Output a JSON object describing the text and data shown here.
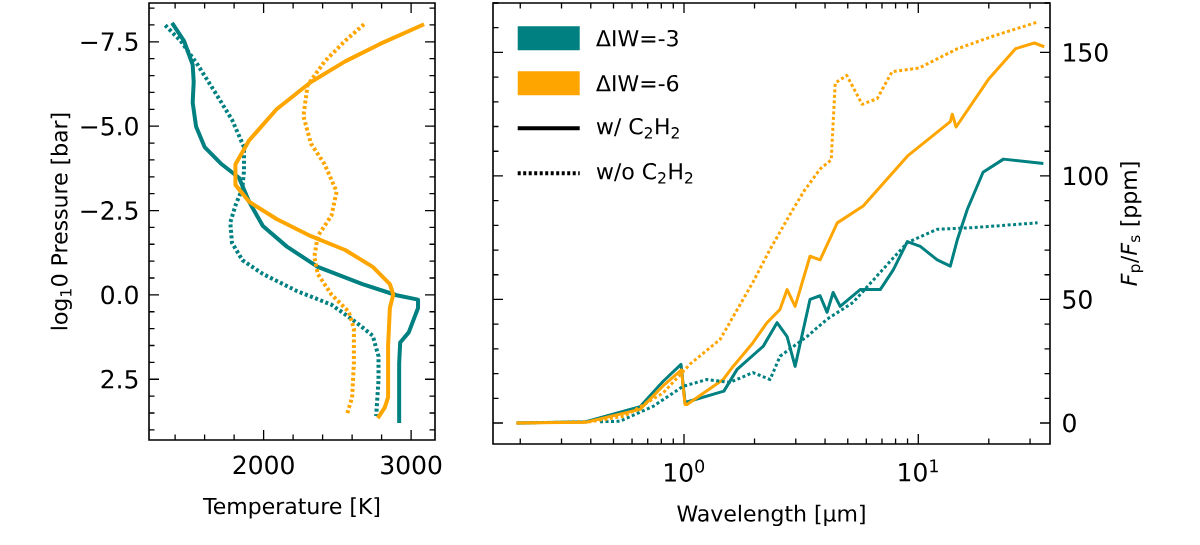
{
  "chart_data": [
    {
      "type": "line",
      "xlabel": "Temperature [K]",
      "ylabel": "log$_{1}$0 Pressure [bar]",
      "xlim": [
        1223,
        3162
      ],
      "ylim": [
        4.3,
        -8.65
      ],
      "xticks": [
        2000,
        3000
      ],
      "yticks": [
        {
          "value": -7.5,
          "label": "−7.5"
        },
        {
          "value": -5.0,
          "label": "−5.0"
        },
        {
          "value": -2.5,
          "label": "−2.5"
        },
        {
          "value": 0.0,
          "label": "0.0"
        },
        2.5
      ],
      "series": [
        {
          "color": "#008080",
          "line_style": "solid",
          "x": [
            1379,
            1460,
            1519,
            1526,
            1519,
            1542,
            1600,
            1716,
            1833,
            1902,
            1995,
            2158,
            2367,
            2670,
            2902,
            3047,
            3047,
            2984,
            2926,
            2919,
            2919
          ],
          "values": [
            -8.06,
            -7.53,
            -6.82,
            -6.31,
            -5.7,
            -4.99,
            -4.38,
            -3.87,
            -3.47,
            -2.76,
            -2.04,
            -1.43,
            -0.83,
            -0.32,
            0.01,
            0.14,
            0.39,
            1.11,
            1.41,
            2.02,
            3.8
          ]
        },
        {
          "color": "#008080",
          "line_style": "dotted",
          "x": [
            1333,
            1437,
            1553,
            1670,
            1786,
            1867,
            1867,
            1856,
            1809,
            1774,
            1786,
            1856,
            1995,
            2228,
            2460,
            2623,
            2740,
            2779,
            2779,
            2763
          ],
          "values": [
            -7.99,
            -7.53,
            -6.82,
            -6.01,
            -5.19,
            -4.38,
            -3.67,
            -3.16,
            -2.65,
            -2.14,
            -1.54,
            -1.03,
            -0.62,
            -0.11,
            0.29,
            0.8,
            1.21,
            1.82,
            2.53,
            3.59
          ]
        },
        {
          "color": "#ffa500",
          "line_style": "solid",
          "x": [
            3088,
            2786,
            2553,
            2321,
            2088,
            1902,
            1809,
            1809,
            1902,
            2088,
            2321,
            2553,
            2740,
            2856,
            2879,
            2856,
            2844,
            2844,
            2821,
            2774
          ],
          "values": [
            -8.02,
            -7.43,
            -6.92,
            -6.31,
            -5.5,
            -4.58,
            -3.87,
            -3.26,
            -2.76,
            -2.25,
            -1.74,
            -1.33,
            -0.83,
            -0.32,
            -0.01,
            0.39,
            1.51,
            3.04,
            3.34,
            3.65
          ]
        },
        {
          "color": "#ffa500",
          "line_style": "dotted",
          "x": [
            2681,
            2553,
            2414,
            2298,
            2270,
            2321,
            2414,
            2495,
            2460,
            2367,
            2344,
            2367,
            2460,
            2577,
            2612,
            2612,
            2600,
            2565
          ],
          "values": [
            -8.02,
            -7.53,
            -6.92,
            -6.21,
            -5.3,
            -4.48,
            -3.87,
            -3.06,
            -2.35,
            -1.74,
            -1.13,
            -0.62,
            -0.01,
            0.5,
            1.0,
            2.02,
            3.04,
            3.54
          ]
        }
      ]
    },
    {
      "type": "line",
      "xlabel": "Wavelength [μm]",
      "ylabel": "*F*$_{p}$/*F*$_{s}$ [ppm]",
      "log": "x",
      "legend": "top left",
      "xlim": [
        0.153,
        36.5
      ],
      "ylim": [
        -8.5,
        170
      ],
      "xticks": [
        {
          "value": 1,
          "label": "10$^{0}$"
        },
        {
          "value": 10,
          "label": "10$^{1}$"
        }
      ],
      "yticks": [
        0,
        50,
        100,
        150
      ],
      "annotations": [
        "w/ C$_{2}$H$_{2}$",
        "w/o C$_{2}$H$_{2}$"
      ],
      "series": [
        {
          "name": "ΔIW=-3",
          "color": "#008080",
          "line_style": "solid",
          "x": [
            0.193,
            0.381,
            0.649,
            0.813,
            0.971,
            1.01,
            1.48,
            1.685,
            2.176,
            2.495,
            2.755,
            2.98,
            3.45,
            3.81,
            4.08,
            4.33,
            4.64,
            5.65,
            6.88,
            7.82,
            8.98,
            10.2,
            12.05,
            13.7,
            14.7,
            16.2,
            18.9,
            23.1,
            34.2
          ],
          "values": [
            0,
            0.5,
            6.6,
            16.8,
            23.7,
            8.3,
            12.9,
            21.7,
            31,
            40.6,
            35,
            22.9,
            50,
            51.5,
            44.8,
            52.8,
            47.2,
            54,
            54,
            62,
            73.4,
            71.5,
            66,
            63.5,
            74.4,
            86.5,
            101.5,
            106.8,
            105
          ]
        },
        {
          "name": "ΔIW=-6",
          "color": "#ffa500",
          "line_style": "solid",
          "x": [
            0.193,
            0.381,
            0.649,
            0.813,
            0.975,
            1.01,
            1.03,
            1.47,
            1.62,
            1.97,
            2.26,
            2.57,
            2.755,
            2.98,
            3.45,
            3.81,
            4.51,
            5.82,
            8.98,
            13.7,
            13.97,
            14.5,
            19.9,
            26.0,
            31.3,
            34.5
          ],
          "values": [
            0,
            0.3,
            5.5,
            15,
            21.5,
            7.5,
            7.5,
            17.6,
            22.9,
            32.5,
            40.6,
            46,
            54,
            47.2,
            67.5,
            66,
            81,
            87.8,
            108,
            122,
            125,
            119.8,
            139,
            151.5,
            153.8,
            152.3
          ]
        },
        {
          "color": "#008080",
          "line_style": "dotted",
          "x": [
            0.438,
            0.533,
            0.737,
            0.99,
            1.25,
            1.57,
            1.97,
            2.33,
            2.57,
            3.35,
            4.08,
            5.27,
            6.88,
            8.98,
            12.05,
            16.7,
            32.3
          ],
          "values": [
            0.5,
            0.7,
            6.7,
            14.8,
            17.6,
            16.4,
            20.4,
            17.6,
            27,
            35,
            42,
            48.8,
            61,
            73,
            78.4,
            79,
            81
          ]
        },
        {
          "color": "#ffa500",
          "line_style": "dotted",
          "x": [
            0.193,
            0.4,
            0.557,
            0.813,
            1.06,
            1.425,
            1.97,
            2.33,
            2.92,
            3.26,
            3.81,
            4.25,
            4.42,
            4.95,
            5.76,
            6.68,
            7.73,
            10.1,
            14.7,
            21.5,
            32.6
          ],
          "values": [
            0,
            0.5,
            2.8,
            12.1,
            23.8,
            33.8,
            57,
            70.3,
            86.5,
            94,
            102.8,
            106.5,
            137.6,
            140.7,
            129,
            131.3,
            142.2,
            143.7,
            151.5,
            157,
            162.4
          ]
        }
      ]
    }
  ]
}
